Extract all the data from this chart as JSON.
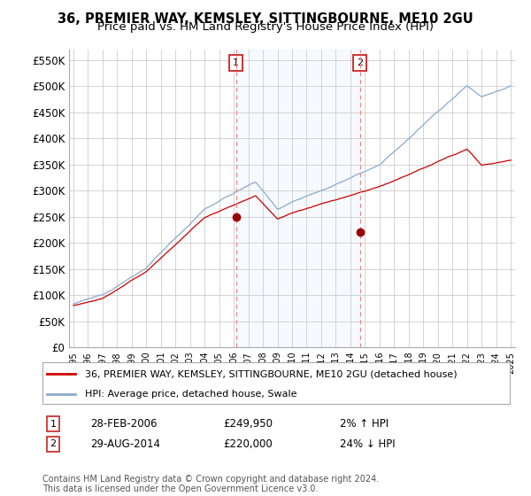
{
  "title": "36, PREMIER WAY, KEMSLEY, SITTINGBOURNE, ME10 2GU",
  "subtitle": "Price paid vs. HM Land Registry's House Price Index (HPI)",
  "ylabel_ticks": [
    "£0",
    "£50K",
    "£100K",
    "£150K",
    "£200K",
    "£250K",
    "£300K",
    "£350K",
    "£400K",
    "£450K",
    "£500K",
    "£550K"
  ],
  "ytick_values": [
    0,
    50000,
    100000,
    150000,
    200000,
    250000,
    300000,
    350000,
    400000,
    450000,
    500000,
    550000
  ],
  "ylim": [
    0,
    570000
  ],
  "sale1_date": 2006.16,
  "sale1_price": 249950,
  "sale1_label": "1",
  "sale2_date": 2014.66,
  "sale2_price": 220000,
  "sale2_label": "2",
  "legend_line1": "36, PREMIER WAY, KEMSLEY, SITTINGBOURNE, ME10 2GU (detached house)",
  "legend_line2": "HPI: Average price, detached house, Swale",
  "footer": "Contains HM Land Registry data © Crown copyright and database right 2024.\nThis data is licensed under the Open Government Licence v3.0.",
  "line_color_red": "#cc0000",
  "line_color_blue": "#88aacc",
  "fill_color": "#ddeeff",
  "marker_color": "#990000",
  "vline_color": "#ee8888",
  "background_color": "#ffffff",
  "grid_color": "#cccccc",
  "title_fontsize": 10.5,
  "subtitle_fontsize": 9.5,
  "tick_fontsize": 8.5,
  "legend_fontsize": 8,
  "annotation_fontsize": 8.5,
  "footer_fontsize": 7
}
